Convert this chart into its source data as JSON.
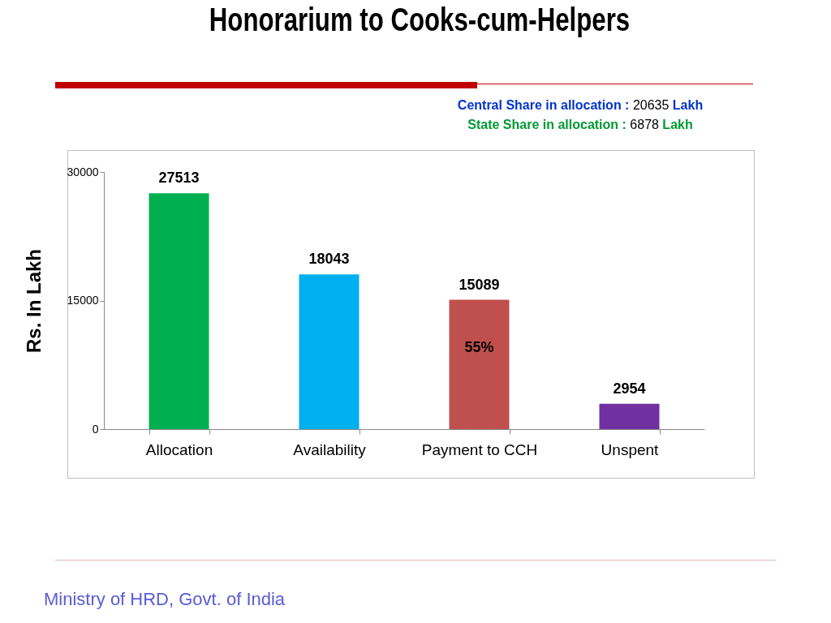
{
  "chart_data": {
    "type": "bar",
    "title": "Honorarium to Cooks-cum-Helpers",
    "ylabel": "Rs. In Lakh",
    "categories": [
      "Allocation",
      "Availability",
      "Payment to CCH",
      "Unspent"
    ],
    "values": [
      27513,
      18043,
      15089,
      2954
    ],
    "colors": [
      "#00b050",
      "#00b0f0",
      "#c0504d",
      "#7030a0"
    ],
    "ylim": [
      0,
      30000
    ],
    "yticks": [
      0,
      15000,
      30000
    ],
    "grid": false,
    "legend": false,
    "data_labels": true,
    "annotations": [
      "Central Share in allocation : 20635 Lakh",
      "State Share in allocation : 6878 Lakh",
      "55%",
      "Ministry of HRD, Govt. of India"
    ]
  }
}
